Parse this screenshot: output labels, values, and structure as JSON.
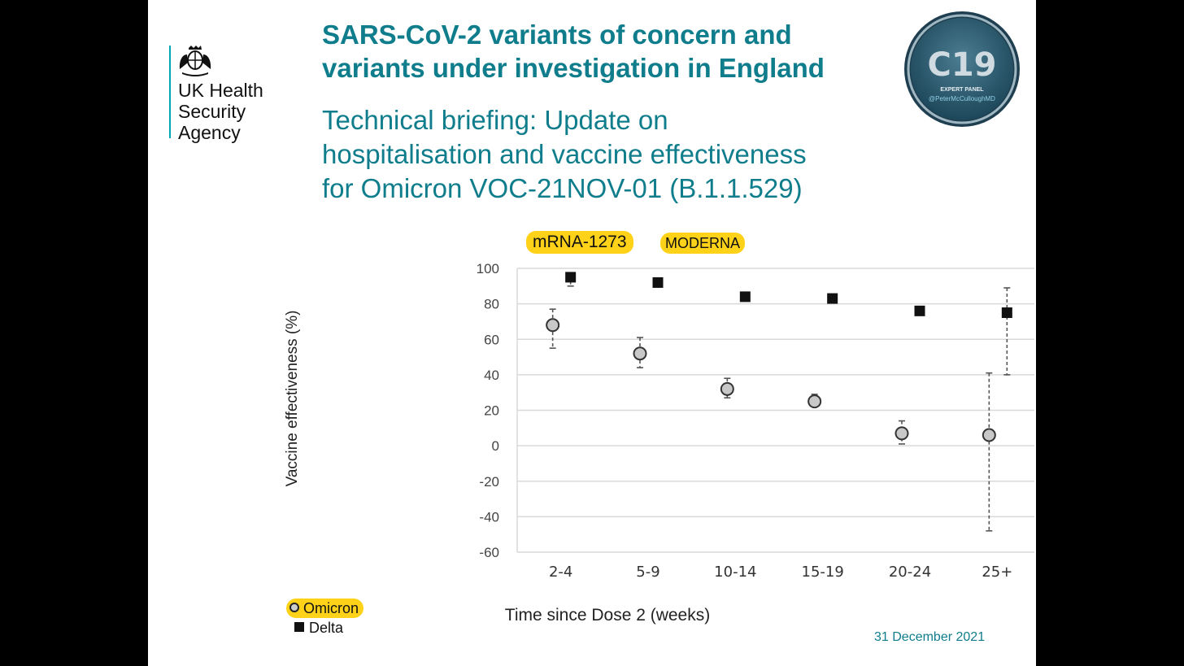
{
  "header": {
    "org_lines": [
      "UK Health",
      "Security",
      "Agency"
    ],
    "title_lines": [
      "SARS-CoV-2 variants of concern and",
      "variants under investigation in England"
    ],
    "subtitle_lines": [
      "Technical briefing: Update on",
      "hospitalisation and vaccine effectiveness",
      "for Omicron VOC-21NOV-01 (B.1.1.529)"
    ]
  },
  "badge": {
    "main": "C19",
    "line1": "EXPERT PANEL",
    "line2": "@PeterMcCulloughMD"
  },
  "tags": {
    "vaccine": "mRNA-1273",
    "brand": "MODERNA"
  },
  "footer": {
    "date": "31 December 2021"
  },
  "colors": {
    "teal": "#0f7d8c",
    "highlight": "#ffd21a",
    "delta": "#111111",
    "omicron_fill": "#c8c8c8"
  },
  "chart_data": {
    "type": "scatter",
    "xlabel": "Time since Dose 2 (weeks)",
    "ylabel": "Vaccine effectiveness (%)",
    "ylim": [
      -60,
      100
    ],
    "yticks": [
      "100",
      "80",
      "60",
      "40",
      "20",
      "0",
      "-20",
      "-40",
      "-60"
    ],
    "categories": [
      "2-4",
      "5-9",
      "10-14",
      "15-19",
      "20-24",
      "25+"
    ],
    "grid": true,
    "legend": "bottom-left",
    "series": [
      {
        "name": "Omicron",
        "marker": "circle",
        "values": [
          68,
          52,
          32,
          25,
          7,
          6
        ],
        "lower": [
          55,
          44,
          27,
          23,
          1,
          -48
        ],
        "upper": [
          77,
          61,
          38,
          29,
          14,
          41
        ]
      },
      {
        "name": "Delta",
        "marker": "square",
        "values": [
          95,
          92,
          84,
          83,
          76,
          75
        ],
        "lower": [
          90,
          91,
          83,
          82,
          75,
          40
        ],
        "upper": [
          96,
          93,
          85,
          84,
          77,
          89
        ]
      }
    ]
  }
}
